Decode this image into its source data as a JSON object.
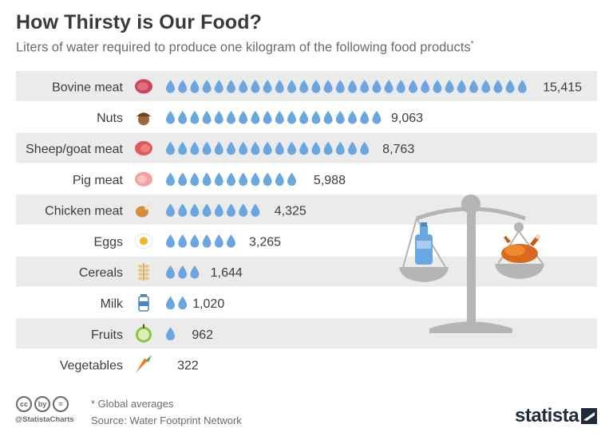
{
  "title": "How Thirsty is Our Food?",
  "subtitle": "Liters of water required to produce one kilogram of the following food products",
  "subtitle_mark": "*",
  "footer": {
    "note": "* Global averages",
    "source": "Source: Water Footprint Network",
    "handle": "@StatistaCharts",
    "brand": "statista",
    "cc_icons": [
      "cc",
      "by",
      "="
    ]
  },
  "colors": {
    "drop": "#6aa6e0",
    "band": "#ebebeb",
    "scale": "#b5b5b5",
    "text": "#3c3c3c"
  },
  "chart_data": {
    "type": "bar",
    "unit_per_drop": 500,
    "categories": [
      "Bovine meat",
      "Nuts",
      "Sheep/goat meat",
      "Pig meat",
      "Chicken meat",
      "Eggs",
      "Cereals",
      "Milk",
      "Fruits",
      "Vegetables"
    ],
    "values": [
      15415,
      9063,
      8763,
      5988,
      4325,
      3265,
      1644,
      1020,
      962,
      322
    ],
    "value_labels": [
      "15,415",
      "9,063",
      "8,763",
      "5,988",
      "4,325",
      "3,265",
      "1,644",
      "1,020",
      "962",
      "322"
    ],
    "icons": [
      "steak-icon",
      "acorn-icon",
      "lamb-steak-icon",
      "pork-icon",
      "chicken-leg-icon",
      "fried-egg-icon",
      "wheat-icon",
      "milk-bottle-icon",
      "apple-icon",
      "carrot-icon"
    ]
  }
}
